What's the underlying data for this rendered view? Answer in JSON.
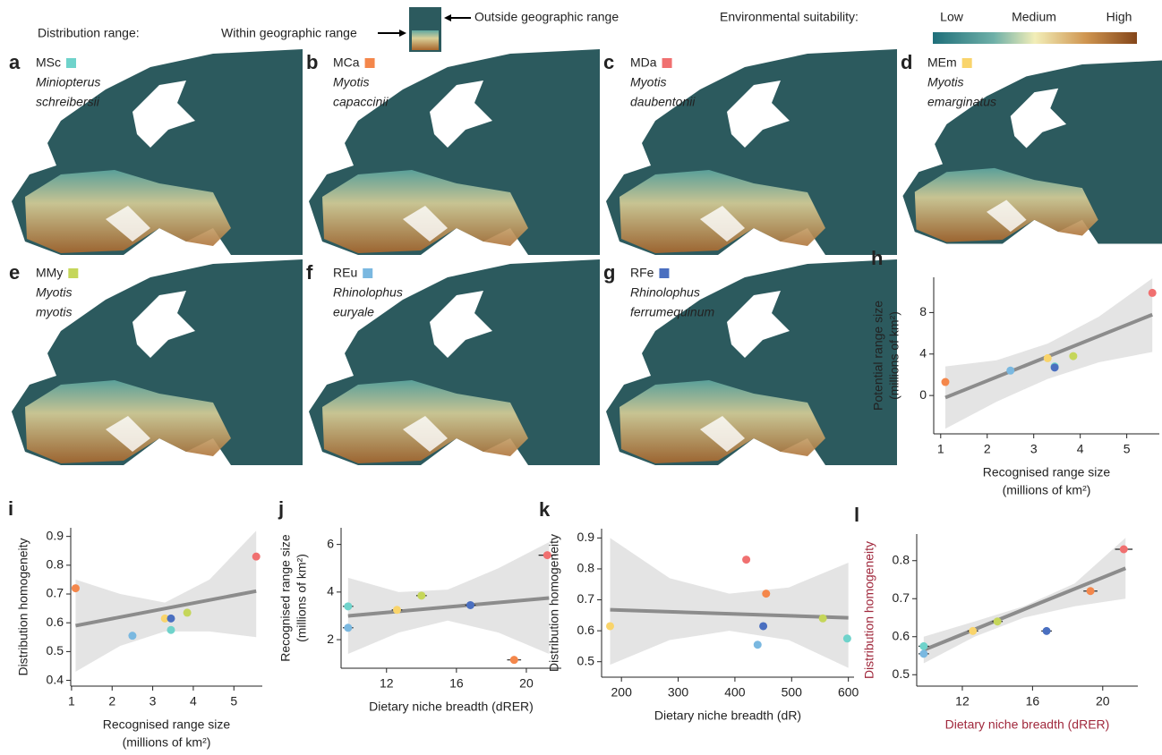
{
  "legend": {
    "distribution": "Distribution range:",
    "within": "Within geographic range",
    "outside": "Outside geographic range",
    "suitability": "Environmental suitability:",
    "low": "Low",
    "medium": "Medium",
    "high": "High"
  },
  "maps": [
    {
      "letter": "a",
      "code": "MSc",
      "color": "#6fd3cb",
      "species": [
        "Miniopterus",
        "schreibersii"
      ]
    },
    {
      "letter": "b",
      "code": "MCa",
      "color": "#f4874b",
      "species": [
        "Myotis",
        "capaccinii"
      ]
    },
    {
      "letter": "c",
      "code": "MDa",
      "color": "#f07070",
      "species": [
        "Myotis",
        "daubentonii"
      ]
    },
    {
      "letter": "d",
      "code": "MEm",
      "color": "#f9d46b",
      "species": [
        "Myotis",
        "emarginatus"
      ]
    },
    {
      "letter": "e",
      "code": "MMy",
      "color": "#c5d65a",
      "species": [
        "Myotis",
        "myotis"
      ]
    },
    {
      "letter": "f",
      "code": "REu",
      "color": "#7ab8e0",
      "species": [
        "Rhinolophus",
        "euryale"
      ]
    },
    {
      "letter": "g",
      "code": "RFe",
      "color": "#4a6fc0",
      "species": [
        "Rhinolophus",
        "ferrumequinum"
      ]
    }
  ],
  "chart_data": [
    {
      "type": "scatter",
      "letter": "h",
      "xlabel": [
        "Recognised range size",
        "(millions of km²)"
      ],
      "ylabel": [
        "Potential range size",
        "(millions of km²)"
      ],
      "x": [
        3.45,
        1.1,
        5.55,
        3.3,
        3.85,
        2.5,
        3.45
      ],
      "values": [
        2.8,
        1.3,
        9.9,
        3.6,
        3.8,
        2.4,
        2.7
      ],
      "colors": [
        "#6fd3cb",
        "#f4874b",
        "#f07070",
        "#f9d46b",
        "#c5d65a",
        "#7ab8e0",
        "#4a6fc0"
      ],
      "fit": {
        "x": [
          1.1,
          5.55
        ],
        "values": [
          -0.2,
          7.8
        ]
      },
      "band": {
        "x": [
          1.1,
          2.2,
          3.3,
          4.4,
          5.55
        ],
        "lower": [
          -3.2,
          -0.6,
          1.6,
          3.2,
          4.2
        ],
        "upper": [
          2.8,
          3.4,
          5.0,
          7.6,
          11.3
        ]
      },
      "xlim": [
        0.85,
        5.7
      ],
      "ylim": [
        -3.7,
        11.4
      ],
      "xticks": [
        1,
        2,
        3,
        4,
        5
      ],
      "yticks": [
        0,
        4,
        8
      ],
      "label_color": "#222"
    },
    {
      "type": "scatter",
      "letter": "i",
      "xlabel": [
        "Recognised range size",
        "(millions of km²)"
      ],
      "ylabel": [
        "Distribution homogeneity"
      ],
      "x": [
        3.45,
        1.1,
        5.55,
        3.3,
        3.85,
        2.5,
        3.45
      ],
      "values": [
        0.575,
        0.72,
        0.83,
        0.615,
        0.635,
        0.555,
        0.615
      ],
      "colors": [
        "#6fd3cb",
        "#f4874b",
        "#f07070",
        "#f9d46b",
        "#c5d65a",
        "#7ab8e0",
        "#4a6fc0"
      ],
      "fit": {
        "x": [
          1.1,
          5.55
        ],
        "values": [
          0.59,
          0.71
        ]
      },
      "band": {
        "x": [
          1.1,
          2.2,
          3.3,
          4.4,
          5.55
        ],
        "lower": [
          0.43,
          0.52,
          0.57,
          0.57,
          0.55
        ],
        "upper": [
          0.75,
          0.7,
          0.67,
          0.75,
          0.92
        ]
      },
      "xlim": [
        0.98,
        5.7
      ],
      "ylim": [
        0.38,
        0.93
      ],
      "xticks": [
        1,
        2,
        3,
        4,
        5
      ],
      "yticks": [
        0.4,
        0.5,
        0.6,
        0.7,
        0.8,
        0.9
      ],
      "label_color": "#222"
    },
    {
      "type": "scatter",
      "letter": "j",
      "xlabel": [
        "Dietary niche breadth (dRER)"
      ],
      "ylabel": [
        "Recognised range size",
        "(millions of km²)"
      ],
      "x": [
        9.8,
        19.3,
        21.2,
        12.6,
        14,
        9.8,
        16.8
      ],
      "xerr": [
        0.3,
        0.4,
        0.5,
        0.3,
        0.3,
        0.3,
        0.3
      ],
      "values": [
        3.4,
        1.15,
        5.55,
        3.25,
        3.85,
        2.5,
        3.45
      ],
      "colors": [
        "#6fd3cb",
        "#f4874b",
        "#f07070",
        "#f9d46b",
        "#c5d65a",
        "#7ab8e0",
        "#4a6fc0"
      ],
      "fit": {
        "x": [
          9.8,
          21.3
        ],
        "values": [
          3.0,
          3.75
        ]
      },
      "band": {
        "x": [
          9.8,
          12.7,
          15.5,
          18.4,
          21.3
        ],
        "lower": [
          1.4,
          2.3,
          2.8,
          2.3,
          1.4
        ],
        "upper": [
          4.6,
          4.0,
          4.1,
          5.0,
          6.1
        ]
      },
      "xlim": [
        9.4,
        22
      ],
      "ylim": [
        0.8,
        6.7
      ],
      "xticks": [
        12,
        16,
        20
      ],
      "yticks": [
        2,
        4,
        6
      ],
      "label_color": "#222"
    },
    {
      "type": "scatter",
      "letter": "k",
      "xlabel": [
        "Dietary niche breadth (dR)"
      ],
      "ylabel": [
        "Distribution homogeneity"
      ],
      "x": [
        598,
        455,
        420,
        180,
        555,
        440,
        450
      ],
      "values": [
        0.575,
        0.72,
        0.83,
        0.615,
        0.64,
        0.555,
        0.615
      ],
      "colors": [
        "#6fd3cb",
        "#f4874b",
        "#f07070",
        "#f9d46b",
        "#c5d65a",
        "#7ab8e0",
        "#4a6fc0"
      ],
      "fit": {
        "x": [
          180,
          600
        ],
        "values": [
          0.668,
          0.642
        ]
      },
      "band": {
        "x": [
          180,
          285,
          390,
          495,
          600
        ],
        "lower": [
          0.49,
          0.57,
          0.6,
          0.57,
          0.48
        ],
        "upper": [
          0.9,
          0.77,
          0.72,
          0.74,
          0.82
        ]
      },
      "xlim": [
        165,
        610
      ],
      "ylim": [
        0.45,
        0.93
      ],
      "xticks": [
        200,
        300,
        400,
        500,
        600
      ],
      "yticks": [
        0.5,
        0.6,
        0.7,
        0.8,
        0.9
      ],
      "label_color": "#222"
    },
    {
      "type": "scatter",
      "letter": "l",
      "xlabel": [
        "Dietary niche breadth (dRER)"
      ],
      "ylabel": [
        "Distribution homogeneity"
      ],
      "x": [
        9.8,
        19.3,
        21.2,
        12.6,
        14,
        9.8,
        16.8
      ],
      "xerr": [
        0.3,
        0.4,
        0.5,
        0.3,
        0.3,
        0.3,
        0.3
      ],
      "values": [
        0.575,
        0.72,
        0.83,
        0.615,
        0.64,
        0.555,
        0.615
      ],
      "colors": [
        "#6fd3cb",
        "#f4874b",
        "#f07070",
        "#f9d46b",
        "#c5d65a",
        "#7ab8e0",
        "#4a6fc0"
      ],
      "fit": {
        "x": [
          9.8,
          21.3
        ],
        "values": [
          0.565,
          0.78
        ]
      },
      "band": {
        "x": [
          9.8,
          12.7,
          15.5,
          18.4,
          21.3
        ],
        "lower": [
          0.53,
          0.6,
          0.65,
          0.68,
          0.7
        ],
        "upper": [
          0.6,
          0.64,
          0.68,
          0.74,
          0.86
        ]
      },
      "xlim": [
        9.4,
        22
      ],
      "ylim": [
        0.47,
        0.87
      ],
      "xticks": [
        12,
        16,
        20
      ],
      "yticks": [
        0.5,
        0.6,
        0.7,
        0.8
      ],
      "label_color": "#a0283c"
    }
  ]
}
